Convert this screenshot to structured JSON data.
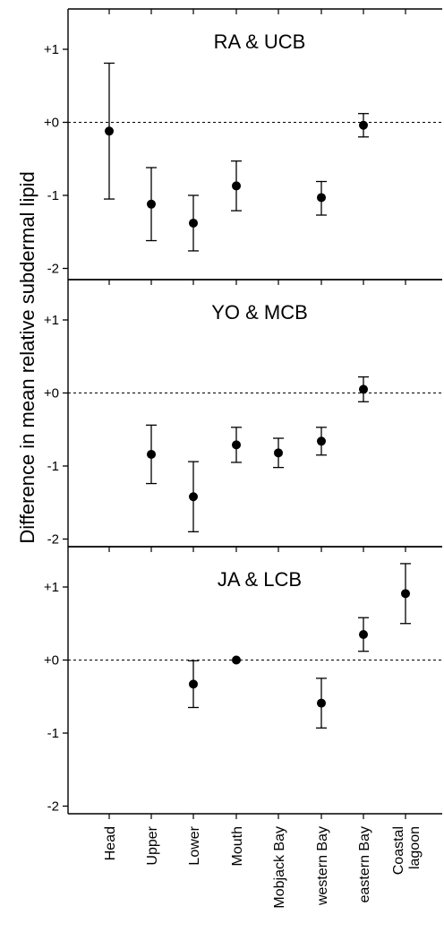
{
  "chart_data": {
    "type": "scatter",
    "ylabel": "Difference in mean relative subdermal lipid",
    "categories": [
      [
        "Head"
      ],
      [
        "Upper"
      ],
      [
        "Lower"
      ],
      [
        "Mouth"
      ],
      [
        "Mobjack Bay"
      ],
      [
        "western Bay"
      ],
      [
        "eastern Bay"
      ],
      [
        "Coastal",
        "lagoon"
      ]
    ],
    "ylim": [
      -2,
      1.5
    ],
    "yticks": [
      {
        "value": 1,
        "label": "+1"
      },
      {
        "value": 0,
        "label": "+0"
      },
      {
        "value": -1,
        "label": "-1"
      },
      {
        "value": -2,
        "label": "-2"
      }
    ],
    "reference_line": 0,
    "error_bars": true,
    "panels": [
      {
        "title": "RA & UCB",
        "points": [
          {
            "category": "Head",
            "y": -0.12,
            "lo": -1.05,
            "hi": 0.81
          },
          {
            "category": "Upper",
            "y": -1.12,
            "lo": -1.62,
            "hi": -0.62
          },
          {
            "category": "Lower",
            "y": -1.38,
            "lo": -1.76,
            "hi": -1.0
          },
          {
            "category": "Mouth",
            "y": -0.87,
            "lo": -1.21,
            "hi": -0.53
          },
          {
            "category": "western Bay",
            "y": -1.03,
            "lo": -1.27,
            "hi": -0.81
          },
          {
            "category": "eastern Bay",
            "y": -0.04,
            "lo": -0.2,
            "hi": 0.12
          }
        ]
      },
      {
        "title": "YO & MCB",
        "points": [
          {
            "category": "Upper",
            "y": -0.84,
            "lo": -1.24,
            "hi": -0.44
          },
          {
            "category": "Lower",
            "y": -1.42,
            "lo": -1.9,
            "hi": -0.94
          },
          {
            "category": "Mouth",
            "y": -0.71,
            "lo": -0.95,
            "hi": -0.47
          },
          {
            "category": "Mobjack Bay",
            "y": -0.82,
            "lo": -1.02,
            "hi": -0.62
          },
          {
            "category": "western Bay",
            "y": -0.66,
            "lo": -0.85,
            "hi": -0.47
          },
          {
            "category": "eastern Bay",
            "y": 0.05,
            "lo": -0.12,
            "hi": 0.22
          }
        ]
      },
      {
        "title": "JA & LCB",
        "points": [
          {
            "category": "Lower",
            "y": -0.33,
            "lo": -0.65,
            "hi": -0.01
          },
          {
            "category": "Mouth",
            "y": 0.0,
            "lo": 0.0,
            "hi": 0.0
          },
          {
            "category": "western Bay",
            "y": -0.59,
            "lo": -0.93,
            "hi": -0.25
          },
          {
            "category": "eastern Bay",
            "y": 0.35,
            "lo": 0.12,
            "hi": 0.58
          },
          {
            "category": "Coastal lagoon",
            "y": 0.91,
            "lo": 0.5,
            "hi": 1.32
          }
        ]
      }
    ]
  }
}
